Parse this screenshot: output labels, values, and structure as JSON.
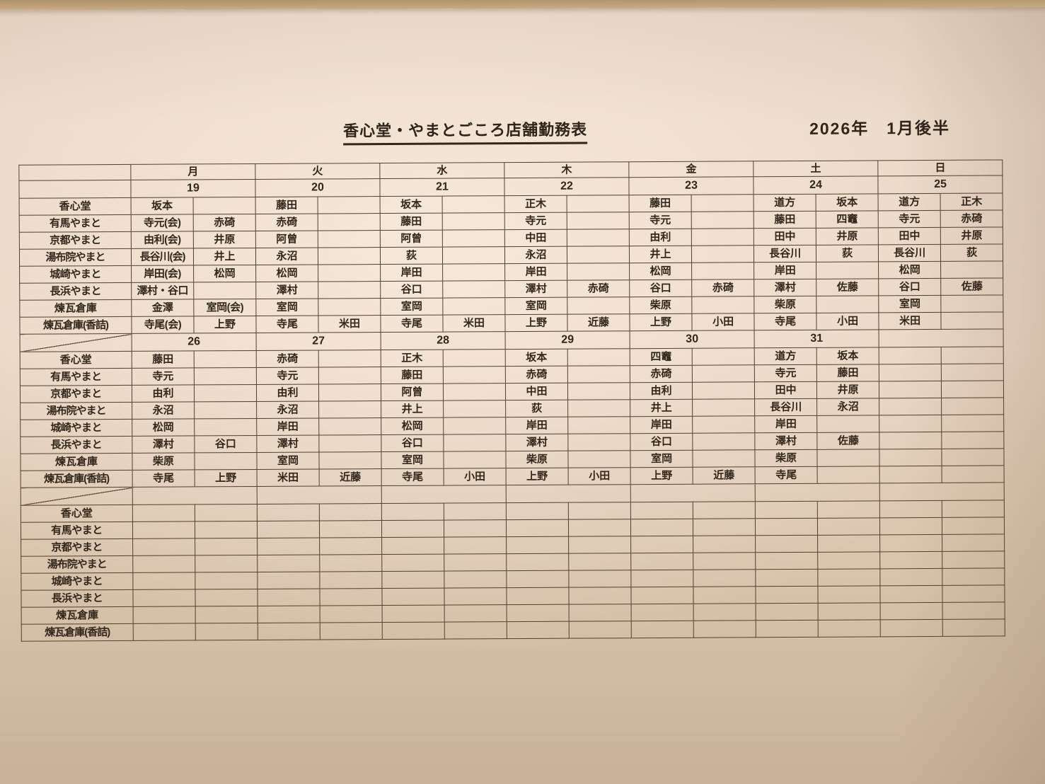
{
  "document": {
    "title": "香心堂・やまとごころ店舗勤務表",
    "period": "2026年　1月後半"
  },
  "table": {
    "day_headers": [
      "月",
      "火",
      "水",
      "木",
      "金",
      "土",
      "日"
    ],
    "row_labels": [
      "香心堂",
      "有馬やまと",
      "京都やまと",
      "湯布院やまと",
      "城崎やまと",
      "長浜やまと",
      "煉瓦倉庫",
      "煉瓦倉庫(香詰)"
    ],
    "blocks": [
      {
        "dates": [
          "19",
          "20",
          "21",
          "22",
          "23",
          "24",
          "25"
        ],
        "rows": [
          [
            "坂本",
            "",
            "藤田",
            "",
            "坂本",
            "",
            "正木",
            "",
            "藤田",
            "",
            "道方",
            "坂本",
            "道方",
            "正木"
          ],
          [
            "寺元(会)",
            "赤碕",
            "赤碕",
            "",
            "藤田",
            "",
            "寺元",
            "",
            "寺元",
            "",
            "藤田",
            "四竈",
            "寺元",
            "赤碕"
          ],
          [
            "由利(会)",
            "井原",
            "阿曾",
            "",
            "阿曾",
            "",
            "中田",
            "",
            "由利",
            "",
            "田中",
            "井原",
            "田中",
            "井原"
          ],
          [
            "長谷川(会)",
            "井上",
            "永沼",
            "",
            "荻",
            "",
            "永沼",
            "",
            "井上",
            "",
            "長谷川",
            "荻",
            "長谷川",
            "荻"
          ],
          [
            "岸田(会)",
            "松岡",
            "松岡",
            "",
            "岸田",
            "",
            "岸田",
            "",
            "松岡",
            "",
            "岸田",
            "",
            "松岡",
            ""
          ],
          [
            "澤村・谷口",
            "",
            "澤村",
            "",
            "谷口",
            "",
            "澤村",
            "赤碕",
            "谷口",
            "赤碕",
            "澤村",
            "佐藤",
            "谷口",
            "佐藤"
          ],
          [
            "金澤",
            "室岡(会)",
            "室岡",
            "",
            "室岡",
            "",
            "室岡",
            "",
            "柴原",
            "",
            "柴原",
            "",
            "室岡",
            ""
          ],
          [
            "寺尾(会)",
            "上野",
            "寺尾",
            "米田",
            "寺尾",
            "米田",
            "上野",
            "近藤",
            "上野",
            "小田",
            "寺尾",
            "小田",
            "米田",
            ""
          ]
        ]
      },
      {
        "dates": [
          "26",
          "27",
          "28",
          "29",
          "30",
          "31",
          ""
        ],
        "rows": [
          [
            "藤田",
            "",
            "赤碕",
            "",
            "正木",
            "",
            "坂本",
            "",
            "四竈",
            "",
            "道方",
            "坂本",
            "",
            ""
          ],
          [
            "寺元",
            "",
            "寺元",
            "",
            "藤田",
            "",
            "赤碕",
            "",
            "赤碕",
            "",
            "寺元",
            "藤田",
            "",
            ""
          ],
          [
            "由利",
            "",
            "由利",
            "",
            "阿曾",
            "",
            "中田",
            "",
            "由利",
            "",
            "田中",
            "井原",
            "",
            ""
          ],
          [
            "永沼",
            "",
            "永沼",
            "",
            "井上",
            "",
            "荻",
            "",
            "井上",
            "",
            "長谷川",
            "永沼",
            "",
            ""
          ],
          [
            "松岡",
            "",
            "岸田",
            "",
            "松岡",
            "",
            "岸田",
            "",
            "岸田",
            "",
            "岸田",
            "",
            "",
            ""
          ],
          [
            "澤村",
            "谷口",
            "澤村",
            "",
            "谷口",
            "",
            "澤村",
            "",
            "谷口",
            "",
            "澤村",
            "佐藤",
            "",
            ""
          ],
          [
            "柴原",
            "",
            "室岡",
            "",
            "室岡",
            "",
            "柴原",
            "",
            "室岡",
            "",
            "柴原",
            "",
            "",
            ""
          ],
          [
            "寺尾",
            "上野",
            "米田",
            "近藤",
            "寺尾",
            "小田",
            "上野",
            "小田",
            "上野",
            "近藤",
            "寺尾",
            "",
            "",
            ""
          ]
        ]
      },
      {
        "dates": [
          "",
          "",
          "",
          "",
          "",
          "",
          ""
        ],
        "rows": [
          [
            "",
            "",
            "",
            "",
            "",
            "",
            "",
            "",
            "",
            "",
            "",
            "",
            "",
            ""
          ],
          [
            "",
            "",
            "",
            "",
            "",
            "",
            "",
            "",
            "",
            "",
            "",
            "",
            "",
            ""
          ],
          [
            "",
            "",
            "",
            "",
            "",
            "",
            "",
            "",
            "",
            "",
            "",
            "",
            "",
            ""
          ],
          [
            "",
            "",
            "",
            "",
            "",
            "",
            "",
            "",
            "",
            "",
            "",
            "",
            "",
            ""
          ],
          [
            "",
            "",
            "",
            "",
            "",
            "",
            "",
            "",
            "",
            "",
            "",
            "",
            "",
            ""
          ],
          [
            "",
            "",
            "",
            "",
            "",
            "",
            "",
            "",
            "",
            "",
            "",
            "",
            "",
            ""
          ],
          [
            "",
            "",
            "",
            "",
            "",
            "",
            "",
            "",
            "",
            "",
            "",
            "",
            "",
            ""
          ],
          [
            "",
            "",
            "",
            "",
            "",
            "",
            "",
            "",
            "",
            "",
            "",
            "",
            "",
            ""
          ]
        ]
      }
    ]
  }
}
